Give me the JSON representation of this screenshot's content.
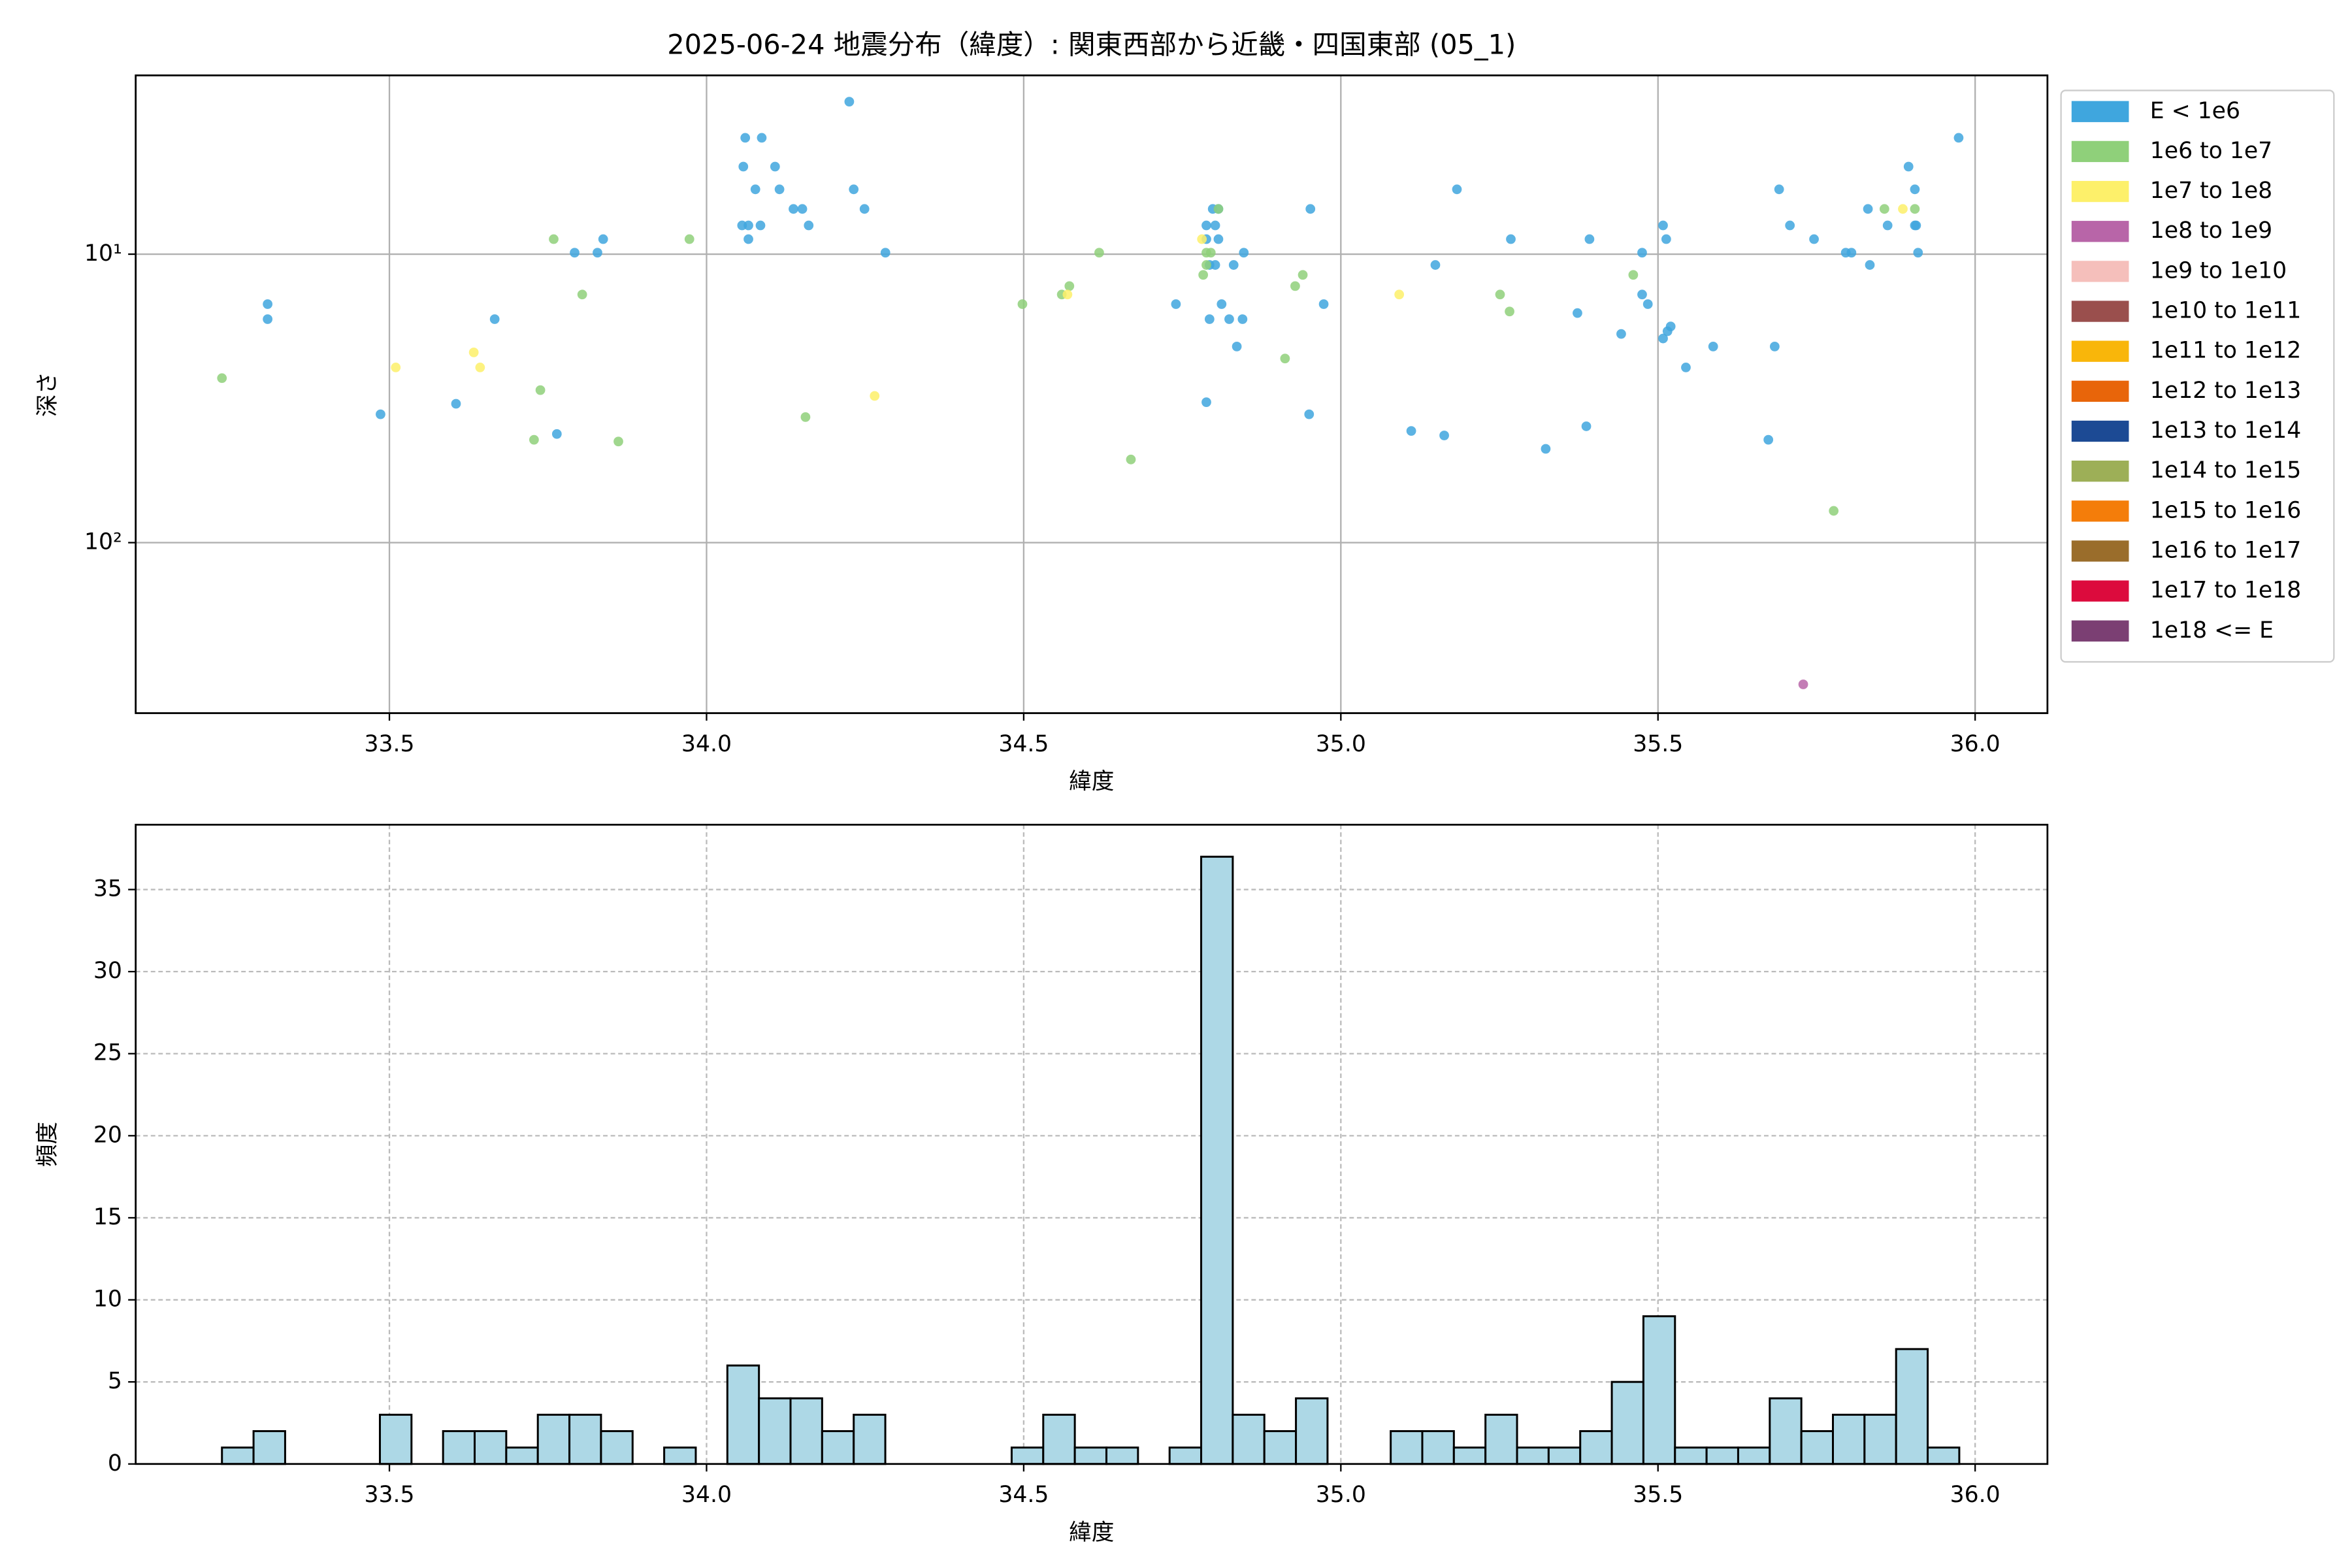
{
  "chart_data": [
    {
      "type": "scatter",
      "title": "2025-06-24 地震分布（緯度）: 関東西部から近畿・四国東部 (05_1)",
      "x_label": "緯度",
      "y_label": "深さ",
      "yscale": "log",
      "grid": true,
      "grid_style": "solid",
      "legend_position": "outside right",
      "xlim": [
        33.1,
        36.114
      ],
      "ylim": [
        390,
        2.4
      ],
      "xticks": [
        33.5,
        {
          "value": 34,
          "label": "34.0"
        },
        34.5,
        {
          "value": 35,
          "label": "35.0"
        },
        35.5,
        {
          "value": 36,
          "label": "36.0"
        }
      ],
      "yticks": [
        {
          "value": 10,
          "label": "10¹"
        },
        {
          "value": 100,
          "label": "10²"
        }
      ],
      "series": [
        {
          "name": "E < 1e6",
          "color": "#3fa6de",
          "x": [
            33.308,
            33.308,
            33.486,
            33.605,
            33.666,
            33.764,
            33.792,
            33.828,
            33.837,
            34.061,
            34.087,
            34.058,
            34.077,
            34.108,
            34.115,
            34.056,
            34.066,
            34.085,
            34.066,
            34.137,
            34.151,
            34.161,
            34.225,
            34.232,
            34.249,
            34.282,
            34.74,
            34.793,
            34.812,
            34.798,
            34.807,
            34.788,
            34.802,
            34.788,
            34.807,
            34.793,
            34.802,
            34.831,
            34.847,
            34.824,
            34.845,
            34.836,
            34.788,
            34.952,
            34.973,
            34.95,
            35.111,
            35.149,
            35.163,
            35.183,
            35.268,
            35.373,
            35.392,
            35.387,
            35.323,
            35.442,
            35.475,
            35.475,
            35.484,
            35.508,
            35.513,
            35.508,
            35.515,
            35.52,
            35.544,
            35.587,
            35.674,
            35.684,
            35.691,
            35.708,
            35.746,
            35.796,
            35.805,
            35.834,
            35.831,
            35.862,
            35.895,
            35.905,
            35.905,
            35.907,
            35.91,
            35.974
          ],
          "values": [
            14.9,
            16.8,
            35.9,
            33.0,
            16.8,
            42.0,
            9.88,
            9.88,
            8.87,
            3.95,
            3.95,
            4.97,
            5.96,
            4.97,
            5.96,
            7.95,
            7.95,
            7.95,
            8.87,
            6.97,
            6.97,
            7.95,
            2.96,
            5.96,
            6.97,
            9.88,
            14.9,
            16.8,
            14.9,
            6.97,
            6.97,
            7.95,
            7.95,
            8.87,
            8.87,
            10.9,
            10.9,
            10.9,
            9.88,
            16.8,
            16.8,
            20.9,
            32.6,
            6.97,
            14.9,
            35.9,
            41.0,
            10.9,
            42.5,
            5.96,
            8.87,
            16.0,
            8.87,
            39.5,
            47.3,
            18.9,
            9.88,
            13.8,
            14.9,
            7.95,
            8.87,
            19.6,
            18.5,
            17.8,
            24.7,
            20.9,
            44.0,
            20.9,
            5.96,
            7.95,
            8.87,
            9.88,
            9.88,
            10.9,
            6.97,
            7.95,
            4.97,
            5.96,
            7.95,
            7.95,
            9.88,
            3.95
          ]
        },
        {
          "name": "1e6 to 1e7",
          "color": "#8fd07a",
          "x": [
            33.236,
            33.738,
            33.728,
            33.804,
            33.759,
            33.861,
            33.973,
            34.156,
            34.498,
            34.56,
            34.572,
            34.619,
            34.669,
            34.783,
            34.788,
            34.788,
            34.795,
            34.807,
            34.912,
            34.928,
            34.94,
            35.251,
            35.266,
            35.461,
            35.777,
            35.857,
            35.905
          ],
          "values": [
            26.9,
            29.6,
            44.0,
            13.8,
            8.87,
            44.6,
            8.87,
            36.7,
            14.9,
            13.8,
            12.9,
            9.88,
            51.5,
            11.8,
            10.9,
            9.88,
            9.88,
            6.97,
            23.0,
            12.9,
            11.8,
            13.8,
            15.8,
            11.8,
            77.6,
            6.97,
            6.97
          ]
        },
        {
          "name": "1e7 to 1e8",
          "color": "#fdf06a",
          "x": [
            33.51,
            33.633,
            33.643,
            34.265,
            34.569,
            34.781,
            35.092,
            35.886
          ],
          "values": [
            24.7,
            21.9,
            24.7,
            31.0,
            13.8,
            8.87,
            13.8,
            6.97
          ]
        },
        {
          "name": "1e8 to 1e9",
          "color": "#b865a8",
          "x": [
            35.729
          ],
          "values": [
            310
          ]
        },
        {
          "name": "1e9 to 1e10",
          "color": "#f5bfbb",
          "x": [],
          "values": []
        },
        {
          "name": "1e10 to 1e11",
          "color": "#9a4f4d",
          "x": [],
          "values": []
        },
        {
          "name": "1e11 to 1e12",
          "color": "#f9b60a",
          "x": [],
          "values": []
        },
        {
          "name": "1e12 to 1e13",
          "color": "#e8650a",
          "x": [],
          "values": []
        },
        {
          "name": "1e13 to 1e14",
          "color": "#1c4a94",
          "x": [],
          "values": []
        },
        {
          "name": "1e14 to 1e15",
          "color": "#9daf57",
          "x": [],
          "values": []
        },
        {
          "name": "1e15 to 1e16",
          "color": "#f47d0a",
          "x": [],
          "values": []
        },
        {
          "name": "1e16 to 1e17",
          "color": "#9a6d2b",
          "x": [],
          "values": []
        },
        {
          "name": "1e17 to 1e18",
          "color": "#dc0b3d",
          "x": [],
          "values": []
        },
        {
          "name": "1e18 <= E",
          "color": "#7b3f73",
          "x": [],
          "values": []
        }
      ]
    },
    {
      "type": "histogram",
      "x_label": "緯度",
      "y_label": "頻度",
      "grid": true,
      "grid_style": "dashed",
      "color": "#add8e6",
      "edge_color": "#000000",
      "xlim": [
        33.1,
        36.114
      ],
      "ylim": [
        0,
        38.95
      ],
      "xticks": [
        33.5,
        {
          "value": 34,
          "label": "34.0"
        },
        34.5,
        {
          "value": 35,
          "label": "35.0"
        },
        35.5,
        {
          "value": 36,
          "label": "36.0"
        }
      ],
      "yticks": [
        0,
        5,
        10,
        15,
        20,
        25,
        30,
        35
      ],
      "bins": [
        33.236,
        33.2858,
        33.3356,
        33.3854,
        33.4352,
        33.485,
        33.5348,
        33.5846,
        33.6344,
        33.6842,
        33.734,
        33.7838,
        33.8336,
        33.8834,
        33.9332,
        33.983,
        34.0328,
        34.0826,
        34.1324,
        34.1822,
        34.232,
        34.2818,
        34.3316,
        34.3814,
        34.4312,
        34.481,
        34.5308,
        34.5806,
        34.6304,
        34.6802,
        34.73,
        34.7798,
        34.8296,
        34.8794,
        34.9292,
        34.979,
        35.0288,
        35.0786,
        35.1284,
        35.1782,
        35.228,
        35.2778,
        35.3276,
        35.3774,
        35.4272,
        35.477,
        35.5268,
        35.5766,
        35.6264,
        35.6762,
        35.726,
        35.7758,
        35.8256,
        35.8754,
        35.9252,
        35.975
      ],
      "values": [
        1,
        2,
        0,
        0,
        0,
        3,
        0,
        2,
        2,
        1,
        3,
        3,
        2,
        0,
        1,
        0,
        6,
        4,
        4,
        2,
        3,
        0,
        0,
        0,
        0,
        1,
        3,
        1,
        1,
        0,
        1,
        37,
        3,
        2,
        4,
        0,
        0,
        2,
        2,
        1,
        3,
        1,
        1,
        2,
        5,
        9,
        1,
        1,
        1,
        4,
        2,
        3,
        3,
        7,
        1
      ]
    }
  ]
}
